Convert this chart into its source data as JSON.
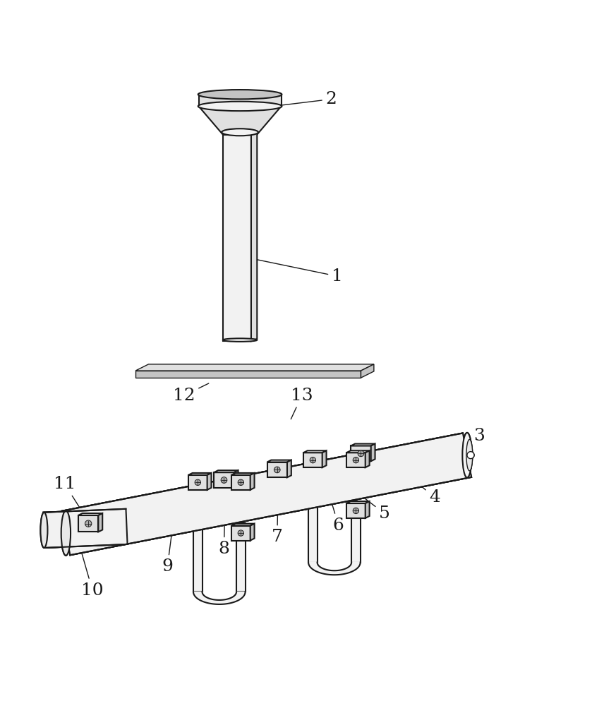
{
  "bg_color": "#ffffff",
  "lc": "#1a1a1a",
  "fill_light": "#f2f2f2",
  "fill_mid": "#e0e0e0",
  "fill_dark": "#c4c4c4",
  "lw": 1.5,
  "lw2": 1.0,
  "label_fs": 18,
  "labels": {
    "1": [
      0.57,
      0.63,
      0.425,
      0.66
    ],
    "2": [
      0.56,
      0.93,
      0.42,
      0.913
    ],
    "3": [
      0.81,
      0.36,
      0.78,
      0.33
    ],
    "4": [
      0.735,
      0.255,
      0.7,
      0.285
    ],
    "5": [
      0.65,
      0.228,
      0.615,
      0.255
    ],
    "6": [
      0.572,
      0.208,
      0.56,
      0.248
    ],
    "7": [
      0.468,
      0.188,
      0.47,
      0.28
    ],
    "8": [
      0.378,
      0.168,
      0.38,
      0.27
    ],
    "9": [
      0.282,
      0.138,
      0.295,
      0.237
    ],
    "10": [
      0.155,
      0.098,
      0.128,
      0.192
    ],
    "11": [
      0.108,
      0.278,
      0.148,
      0.215
    ],
    "12": [
      0.31,
      0.428,
      0.355,
      0.45
    ],
    "13": [
      0.51,
      0.428,
      0.49,
      0.385
    ]
  }
}
